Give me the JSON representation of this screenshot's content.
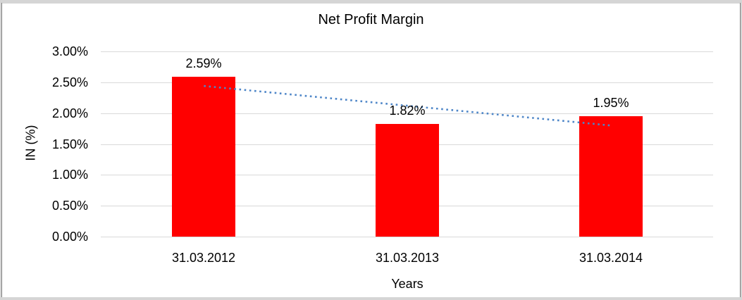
{
  "chart_data": {
    "type": "bar",
    "title": "Net Profit Margin",
    "xlabel": "Years",
    "ylabel": "IN (%)",
    "categories": [
      "31.03.2012",
      "31.03.2013",
      "31.03.2014"
    ],
    "values": [
      2.59,
      1.82,
      1.95
    ],
    "data_labels": [
      "2.59%",
      "1.82%",
      "1.95%"
    ],
    "ylim": [
      0,
      3
    ],
    "ytick_step": 0.5,
    "ytick_labels": [
      "0.00%",
      "0.50%",
      "1.00%",
      "1.50%",
      "2.00%",
      "2.50%",
      "3.00%"
    ],
    "grid": true,
    "legend": "none",
    "bar_color": "#ff0000",
    "gridline_color": "#d9d9d9",
    "text_color": "#000000",
    "trendline": {
      "type": "linear",
      "style": "dotted",
      "color": "#4e86c8",
      "start_value": 2.44,
      "end_value": 1.8
    }
  }
}
